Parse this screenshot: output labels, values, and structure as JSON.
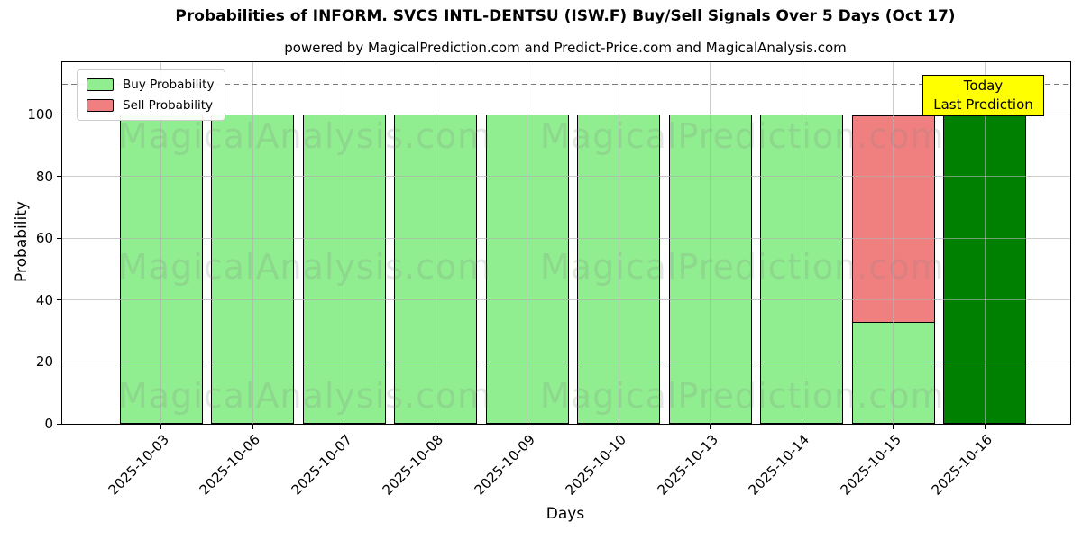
{
  "legend": {
    "items": [
      {
        "label": "Buy Probability",
        "color": "#90EE90"
      },
      {
        "label": "Sell Probability",
        "color": "#F08080"
      }
    ]
  },
  "annotation": {
    "lines": [
      "Today",
      "Last Prediction"
    ],
    "bg": "#FFFF00",
    "border": "#000000"
  },
  "watermarks": {
    "left": "MagicalAnalysis.com",
    "right": "MagicalPrediction.com"
  },
  "chart_data": {
    "type": "bar",
    "stacked": true,
    "title": "Probabilities of INFORM. SVCS INTL-DENTSU (ISW.F) Buy/Sell Signals Over 5 Days (Oct 17)",
    "subtitle": "powered by MagicalPrediction.com and Predict-Price.com and MagicalAnalysis.com",
    "xlabel": "Days",
    "ylabel": "Probability",
    "categories": [
      "2025-10-03",
      "2025-10-06",
      "2025-10-07",
      "2025-10-08",
      "2025-10-09",
      "2025-10-10",
      "2025-10-13",
      "2025-10-14",
      "2025-10-15",
      "2025-10-16"
    ],
    "series": [
      {
        "name": "Buy Probability",
        "color": "#90EE90",
        "values": [
          100,
          100,
          100,
          100,
          100,
          100,
          100,
          100,
          33,
          100
        ]
      },
      {
        "name": "Sell Probability",
        "color": "#F08080",
        "values": [
          0,
          0,
          0,
          0,
          0,
          0,
          0,
          0,
          67,
          0
        ]
      }
    ],
    "highlight_bar": {
      "category": "2025-10-16",
      "color": "#008000",
      "note": "Today / Last Prediction"
    },
    "dashed_line_y": 110,
    "yticks": [
      0,
      20,
      40,
      60,
      80,
      100
    ],
    "ylim": [
      0,
      117
    ],
    "grid": true,
    "legend_position": "upper left",
    "bar_edge_color": "#000000"
  }
}
